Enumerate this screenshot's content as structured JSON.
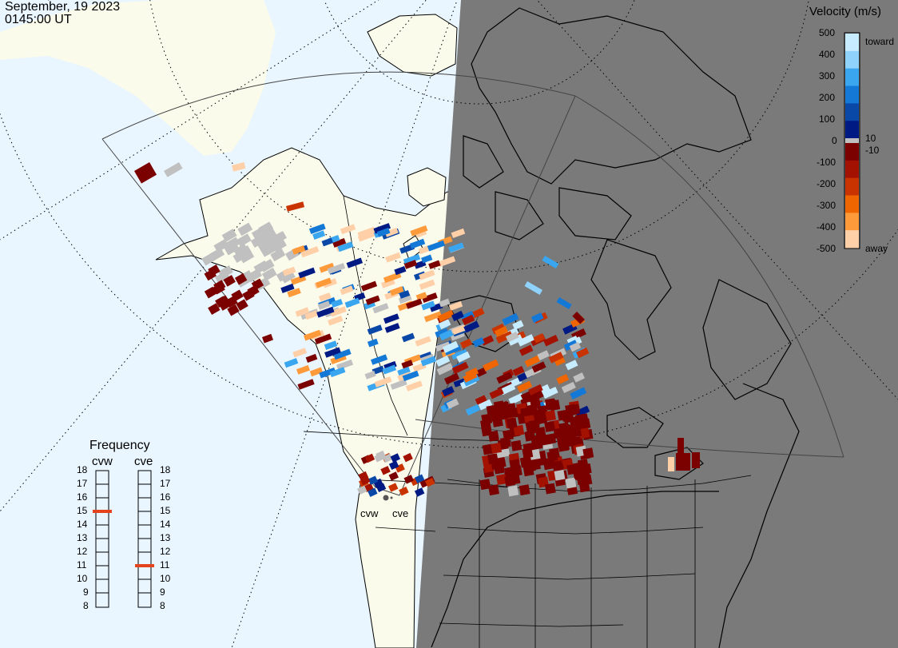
{
  "header": {
    "date": "September, 19 2023",
    "time": "0145:00 UT"
  },
  "legend": {
    "title": "Velocity (m/s)",
    "ticks": [
      "500",
      "400",
      "300",
      "200",
      "100",
      "0",
      "-100",
      "-200",
      "-300",
      "-400",
      "-500"
    ],
    "near_zero_pos": "10",
    "near_zero_neg": "-10",
    "toward_label": "toward",
    "away_label": "away",
    "colors_toward": [
      "#c8ecff",
      "#8fd2fb",
      "#3aa6ef",
      "#1478d6",
      "#0a48a8",
      "#001a84"
    ],
    "colors_away": [
      "#7b0000",
      "#a31100",
      "#c93300",
      "#ef6600",
      "#ff9a3a",
      "#ffd0a8"
    ],
    "zero_color": "#c0c0c0"
  },
  "frequency": {
    "title": "Frequency",
    "radars": [
      "cvw",
      "cve"
    ],
    "scale": [
      "18",
      "17",
      "16",
      "15",
      "14",
      "13",
      "12",
      "11",
      "10",
      "9",
      "8"
    ],
    "current_mhz": {
      "cvw": 15,
      "cve": 11
    },
    "marker_color": "#e5431e"
  },
  "map": {
    "radar_labels": [
      "cvw",
      "cve"
    ],
    "ocean_color": "#e9f6ff",
    "land_color": "#fbfbec",
    "night_color": "#7a7a7a",
    "ground_scatter_color": "#c0c0c0"
  }
}
